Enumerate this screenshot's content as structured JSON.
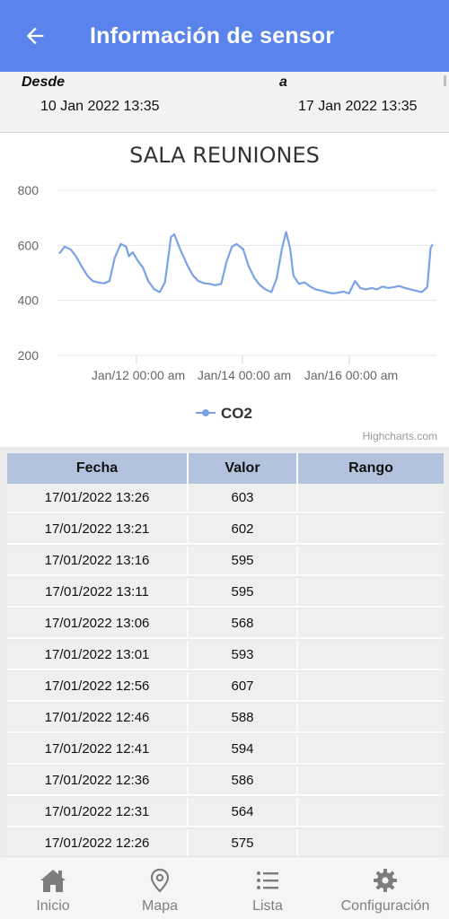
{
  "appbar": {
    "title": "Información de sensor"
  },
  "range": {
    "from_label": "Desde",
    "to_label": "a",
    "from_value": "10 Jan 2022 13:35",
    "to_value": "17 Jan 2022 13:35"
  },
  "chart_data": {
    "type": "line",
    "title": "SALA REUNIONES",
    "yticks": [
      "800",
      "600",
      "400",
      "200"
    ],
    "xticks": [
      "Jan/12 00:00 am",
      "Jan/14 00:00 am",
      "Jan/16 00:00 am"
    ],
    "ylim": [
      200,
      800
    ],
    "series": [
      {
        "name": "CO2",
        "color": "#7aa3e5",
        "points": [
          [
            0.0,
            570
          ],
          [
            0.08,
            595
          ],
          [
            0.17,
            585
          ],
          [
            0.25,
            560
          ],
          [
            0.33,
            525
          ],
          [
            0.42,
            490
          ],
          [
            0.5,
            470
          ],
          [
            0.58,
            465
          ],
          [
            0.67,
            462
          ],
          [
            0.75,
            470
          ],
          [
            0.83,
            555
          ],
          [
            0.92,
            605
          ],
          [
            1.0,
            595
          ],
          [
            1.04,
            560
          ],
          [
            1.1,
            575
          ],
          [
            1.17,
            545
          ],
          [
            1.25,
            520
          ],
          [
            1.33,
            470
          ],
          [
            1.42,
            440
          ],
          [
            1.5,
            430
          ],
          [
            1.58,
            465
          ],
          [
            1.67,
            630
          ],
          [
            1.72,
            640
          ],
          [
            1.8,
            590
          ],
          [
            1.92,
            525
          ],
          [
            2.0,
            490
          ],
          [
            2.08,
            470
          ],
          [
            2.17,
            462
          ],
          [
            2.25,
            460
          ],
          [
            2.33,
            455
          ],
          [
            2.42,
            460
          ],
          [
            2.5,
            540
          ],
          [
            2.58,
            595
          ],
          [
            2.65,
            605
          ],
          [
            2.75,
            585
          ],
          [
            2.83,
            525
          ],
          [
            2.92,
            480
          ],
          [
            3.0,
            455
          ],
          [
            3.08,
            440
          ],
          [
            3.17,
            430
          ],
          [
            3.25,
            480
          ],
          [
            3.33,
            590
          ],
          [
            3.39,
            648
          ],
          [
            3.45,
            590
          ],
          [
            3.5,
            490
          ],
          [
            3.58,
            460
          ],
          [
            3.67,
            465
          ],
          [
            3.75,
            450
          ],
          [
            3.83,
            440
          ],
          [
            3.92,
            435
          ],
          [
            4.0,
            430
          ],
          [
            4.08,
            425
          ],
          [
            4.17,
            428
          ],
          [
            4.25,
            432
          ],
          [
            4.33,
            425
          ],
          [
            4.42,
            470
          ],
          [
            4.5,
            445
          ],
          [
            4.58,
            440
          ],
          [
            4.67,
            445
          ],
          [
            4.75,
            440
          ],
          [
            4.83,
            450
          ],
          [
            4.92,
            445
          ],
          [
            5.0,
            448
          ],
          [
            5.08,
            452
          ],
          [
            5.17,
            445
          ],
          [
            5.25,
            440
          ],
          [
            5.33,
            435
          ],
          [
            5.42,
            430
          ],
          [
            5.5,
            448
          ],
          [
            5.55,
            590
          ],
          [
            5.58,
            603
          ]
        ]
      }
    ]
  },
  "chart_credit": "Highcharts.com",
  "table": {
    "headers": [
      "Fecha",
      "Valor",
      "Rango"
    ],
    "rows": [
      [
        "17/01/2022 13:26",
        "603",
        ""
      ],
      [
        "17/01/2022 13:21",
        "602",
        ""
      ],
      [
        "17/01/2022 13:16",
        "595",
        ""
      ],
      [
        "17/01/2022 13:11",
        "595",
        ""
      ],
      [
        "17/01/2022 13:06",
        "568",
        ""
      ],
      [
        "17/01/2022 13:01",
        "593",
        ""
      ],
      [
        "17/01/2022 12:56",
        "607",
        ""
      ],
      [
        "17/01/2022 12:46",
        "588",
        ""
      ],
      [
        "17/01/2022 12:41",
        "594",
        ""
      ],
      [
        "17/01/2022 12:36",
        "586",
        ""
      ],
      [
        "17/01/2022 12:31",
        "564",
        ""
      ],
      [
        "17/01/2022 12:26",
        "575",
        ""
      ]
    ]
  },
  "nav": {
    "items": [
      {
        "label": "Inicio",
        "icon": "home-icon"
      },
      {
        "label": "Mapa",
        "icon": "map-pin-icon"
      },
      {
        "label": "Lista",
        "icon": "list-icon"
      },
      {
        "label": "Configuración",
        "icon": "gear-icon"
      }
    ]
  }
}
